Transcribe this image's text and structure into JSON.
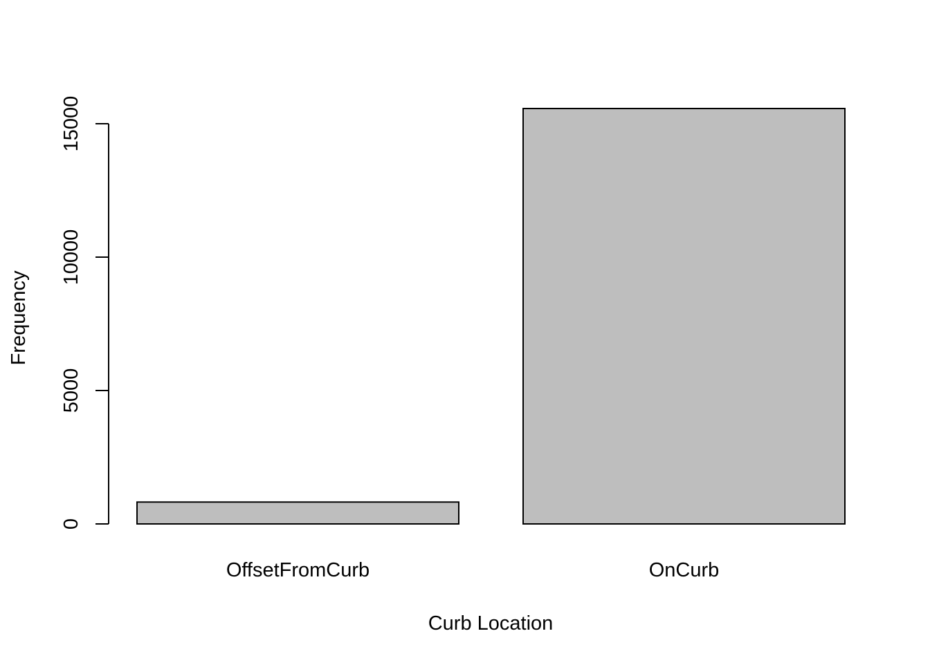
{
  "chart_data": {
    "type": "bar",
    "categories": [
      "OffsetFromCurb",
      "OnCurb"
    ],
    "values": [
      820,
      15570
    ],
    "xlabel": "Curb Location",
    "ylabel": "Frequency",
    "yticks": [
      0,
      5000,
      10000,
      15000
    ],
    "ylim": [
      0,
      15570
    ],
    "grid": false,
    "bar_color": "#bebebe",
    "bar_border_color": "#000000"
  }
}
